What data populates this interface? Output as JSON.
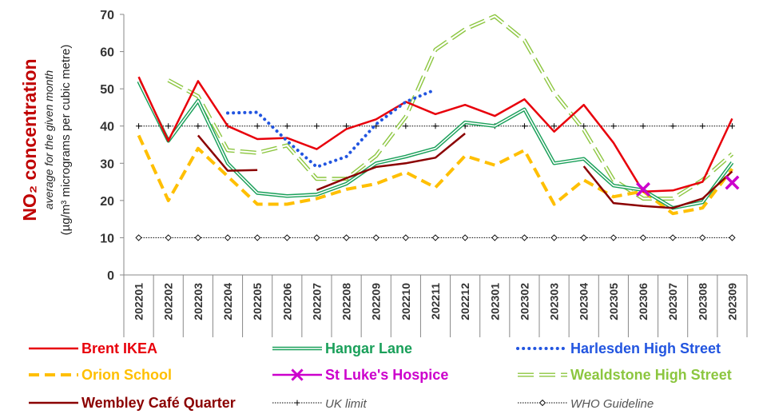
{
  "chart_data": {
    "type": "line",
    "title": "NO₂ concentration",
    "subtitle": "average for the given month",
    "ylabel": "(µg/m³ micrograms per cubic metre)",
    "ylim": [
      0,
      70
    ],
    "yticks": [
      "0",
      "10",
      "20",
      "30",
      "40",
      "50",
      "60",
      "70"
    ],
    "grid": false,
    "legend_position": "bottom",
    "categories": [
      "202201",
      "202202",
      "202203",
      "202204",
      "202205",
      "202206",
      "202207",
      "202208",
      "202209",
      "202210",
      "202211",
      "202212",
      "202301",
      "202302",
      "202303",
      "202304",
      "202305",
      "202306",
      "202307",
      "202308",
      "202309"
    ],
    "series": [
      {
        "name": "Brent IKEA",
        "color": "#e8000b",
        "style": "solid",
        "values": [
          53.2,
          36.0,
          52.1,
          40.0,
          36.5,
          36.8,
          33.8,
          39.2,
          41.8,
          46.5,
          43.2,
          45.7,
          42.7,
          47.2,
          38.5,
          45.7,
          35.5,
          22.4,
          22.7,
          25.0,
          42.0
        ]
      },
      {
        "name": "Hangar Lane",
        "color": "#1aa05a",
        "style": "double",
        "values": [
          52.0,
          36.0,
          46.8,
          30.0,
          22.0,
          21.2,
          21.6,
          24.5,
          30.0,
          31.8,
          34.0,
          41.0,
          40.0,
          44.5,
          30.0,
          31.2,
          24.0,
          22.8,
          18.0,
          19.5,
          30.2
        ]
      },
      {
        "name": "Harlesden High Street",
        "color": "#2255e0",
        "style": "dotted",
        "values": [
          null,
          null,
          null,
          43.5,
          43.7,
          36.0,
          29.0,
          31.8,
          40.5,
          46.5,
          49.8,
          null,
          null,
          null,
          null,
          null,
          null,
          null,
          null,
          null,
          null
        ]
      },
      {
        "name": "Orion School",
        "color": "#ffbf00",
        "style": "dashed",
        "values": [
          37.5,
          20.0,
          34.0,
          26.5,
          19.0,
          19.0,
          20.5,
          23.0,
          24.5,
          27.6,
          23.5,
          32.0,
          29.5,
          33.5,
          19.0,
          25.5,
          21.0,
          22.5,
          16.5,
          18.0,
          28.5
        ]
      },
      {
        "name": "St Luke's Hospice",
        "color": "#cc00cc",
        "style": "marker",
        "values": [
          null,
          null,
          null,
          null,
          null,
          null,
          null,
          null,
          null,
          null,
          null,
          null,
          null,
          null,
          null,
          null,
          null,
          23.0,
          null,
          null,
          24.8
        ]
      },
      {
        "name": "Wealdstone High Street",
        "color": "#8cc63f",
        "style": "hollow-dashed",
        "values": [
          null,
          52.3,
          48.0,
          33.5,
          32.8,
          34.8,
          25.8,
          25.8,
          32.0,
          42.5,
          60.5,
          66.0,
          69.5,
          63.0,
          49.0,
          39.0,
          25.5,
          20.5,
          20.5,
          25.5,
          32.5
        ]
      },
      {
        "name": "Wembley Café Quarter",
        "color": "#8b0000",
        "style": "solid",
        "values": [
          null,
          null,
          37.5,
          28.0,
          28.2,
          null,
          22.8,
          26.0,
          29.0,
          30.0,
          31.5,
          38.0,
          null,
          null,
          null,
          29.2,
          19.3,
          18.5,
          18.0,
          20.5,
          27.8
        ]
      },
      {
        "name": "UK limit",
        "color": "#000000",
        "style": "ref-plus",
        "values": [
          40,
          40,
          40,
          40,
          40,
          40,
          40,
          40,
          40,
          40,
          40,
          40,
          40,
          40,
          40,
          40,
          40,
          40,
          40,
          40,
          40
        ]
      },
      {
        "name": "WHO Guideline",
        "color": "#000000",
        "style": "ref-diamond",
        "values": [
          10,
          10,
          10,
          10,
          10,
          10,
          10,
          10,
          10,
          10,
          10,
          10,
          10,
          10,
          10,
          10,
          10,
          10,
          10,
          10,
          10
        ]
      }
    ]
  }
}
